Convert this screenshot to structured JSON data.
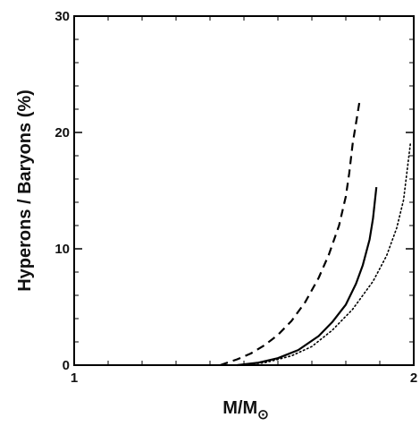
{
  "chart_data": {
    "type": "line",
    "title": "",
    "xlabel": "M/M",
    "xlabel_sub": "⊙",
    "ylabel": "Hyperons / Baryons (%)",
    "xlim": [
      1,
      2
    ],
    "ylim": [
      0,
      30
    ],
    "x_ticks": [
      1,
      2
    ],
    "y_ticks": [
      0,
      10,
      20,
      30
    ],
    "x_tick_labels": [
      "1",
      "2"
    ],
    "y_tick_labels": [
      "0",
      "10",
      "20",
      "30"
    ],
    "grid": false,
    "legend": "none",
    "series": [
      {
        "style": "dashed",
        "x": [
          1.43,
          1.48,
          1.52,
          1.56,
          1.6,
          1.64,
          1.68,
          1.72,
          1.75,
          1.78,
          1.8,
          1.81,
          1.82,
          1.84
        ],
        "y": [
          0,
          0.5,
          1.0,
          1.7,
          2.6,
          3.8,
          5.4,
          7.5,
          9.5,
          12.0,
          14.5,
          16.5,
          19.0,
          22.6
        ]
      },
      {
        "style": "solid",
        "x": [
          1.48,
          1.54,
          1.6,
          1.66,
          1.72,
          1.76,
          1.8,
          1.83,
          1.85,
          1.87,
          1.88,
          1.89
        ],
        "y": [
          0,
          0.2,
          0.6,
          1.3,
          2.5,
          3.7,
          5.2,
          7.0,
          8.6,
          10.8,
          12.6,
          15.3
        ]
      },
      {
        "style": "dotted",
        "x": [
          1.48,
          1.56,
          1.64,
          1.7,
          1.76,
          1.82,
          1.88,
          1.92,
          1.95,
          1.97,
          1.99
        ],
        "y": [
          0,
          0.2,
          0.8,
          1.6,
          3.0,
          4.8,
          7.2,
          9.4,
          11.8,
          14.2,
          19.0
        ]
      }
    ]
  }
}
